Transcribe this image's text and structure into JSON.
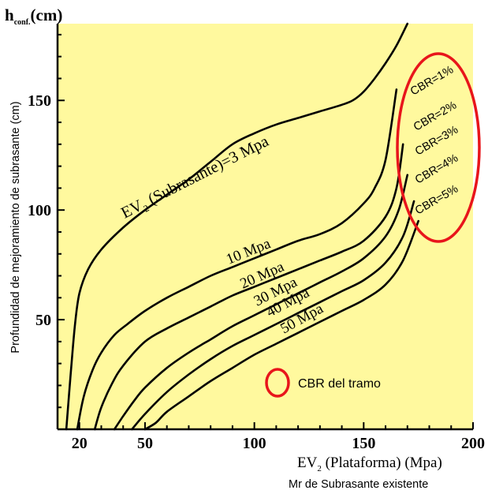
{
  "chart_data": {
    "type": "line",
    "y_title": "h",
    "y_title_subscript": "conf.",
    "y_title_unit": "(cm)",
    "ylabel": "Profundidad de mejoramiento de subrasante (cm)",
    "xlabel_main": "EV",
    "xlabel_sub": "2",
    "xlabel_rest": " (Plataforma) (Mpa)",
    "xlabel2": "Mr de Subrasante existente",
    "xlim": [
      10,
      200
    ],
    "ylim": [
      0,
      185
    ],
    "x_ticks": [
      20,
      50,
      100,
      150,
      200
    ],
    "y_ticks": [
      50,
      100,
      150
    ],
    "colors": {
      "background": "#FFF99E",
      "line": "#000000",
      "highlight": "#E8151B"
    },
    "series": [
      {
        "name": "EV2 (Subrasante)=3 Mpa",
        "label_pre": "EV",
        "label_sub": "2",
        "label_post": " (Subrasante)=3 Mpa",
        "x": [
          14,
          16,
          18,
          20,
          24,
          30,
          40,
          50,
          60,
          70,
          80,
          90,
          100,
          110,
          120,
          130,
          140,
          145,
          150,
          155,
          160,
          165,
          170
        ],
        "y": [
          0,
          25,
          48,
          62,
          73,
          82,
          92,
          100,
          107,
          114,
          122,
          130,
          135,
          139,
          142,
          145,
          148,
          150,
          154,
          160,
          167,
          175,
          185
        ]
      },
      {
        "name": "10 Mpa",
        "x": [
          19,
          22,
          26,
          30,
          36,
          42,
          50,
          60,
          70,
          80,
          90,
          100,
          110,
          120,
          130,
          140,
          150,
          155,
          160,
          165
        ],
        "y": [
          0,
          15,
          27,
          35,
          43,
          48,
          54,
          60,
          65,
          70,
          74,
          78,
          82,
          86,
          89,
          94,
          103,
          110,
          123,
          155
        ]
      },
      {
        "name": "20 Mpa",
        "x": [
          27,
          30,
          35,
          40,
          50,
          60,
          70,
          80,
          90,
          100,
          110,
          120,
          130,
          140,
          150,
          160,
          165,
          168
        ],
        "y": [
          0,
          10,
          21,
          29,
          40,
          46,
          51,
          56,
          61,
          65,
          69,
          73,
          77,
          81,
          86,
          97,
          110,
          130
        ]
      },
      {
        "name": "30 Mpa",
        "x": [
          36,
          40,
          45,
          50,
          60,
          70,
          80,
          90,
          100,
          110,
          120,
          130,
          140,
          150,
          160,
          166,
          170
        ],
        "y": [
          0,
          6,
          13,
          19,
          28,
          35,
          41,
          47,
          52,
          57,
          62,
          67,
          72,
          78,
          88,
          100,
          116
        ]
      },
      {
        "name": "40 Mpa",
        "x": [
          44,
          50,
          60,
          70,
          80,
          90,
          100,
          110,
          120,
          130,
          140,
          150,
          160,
          168,
          173
        ],
        "y": [
          0,
          7,
          17,
          25,
          32,
          38,
          43,
          48,
          53,
          58,
          63,
          68,
          76,
          88,
          104
        ]
      },
      {
        "name": "50 Mpa",
        "x": [
          50,
          55,
          60,
          70,
          80,
          90,
          100,
          110,
          120,
          130,
          140,
          150,
          160,
          168,
          175
        ],
        "y": [
          0,
          3,
          8,
          15,
          22,
          28,
          34,
          39,
          44,
          49,
          54,
          59,
          66,
          77,
          95
        ]
      }
    ],
    "cbr_labels": [
      "CBR=1%",
      "CBR=2%",
      "CBR=3%",
      "CBR=4%",
      "CBR=5%"
    ],
    "legend_text": "CBR del tramo"
  }
}
